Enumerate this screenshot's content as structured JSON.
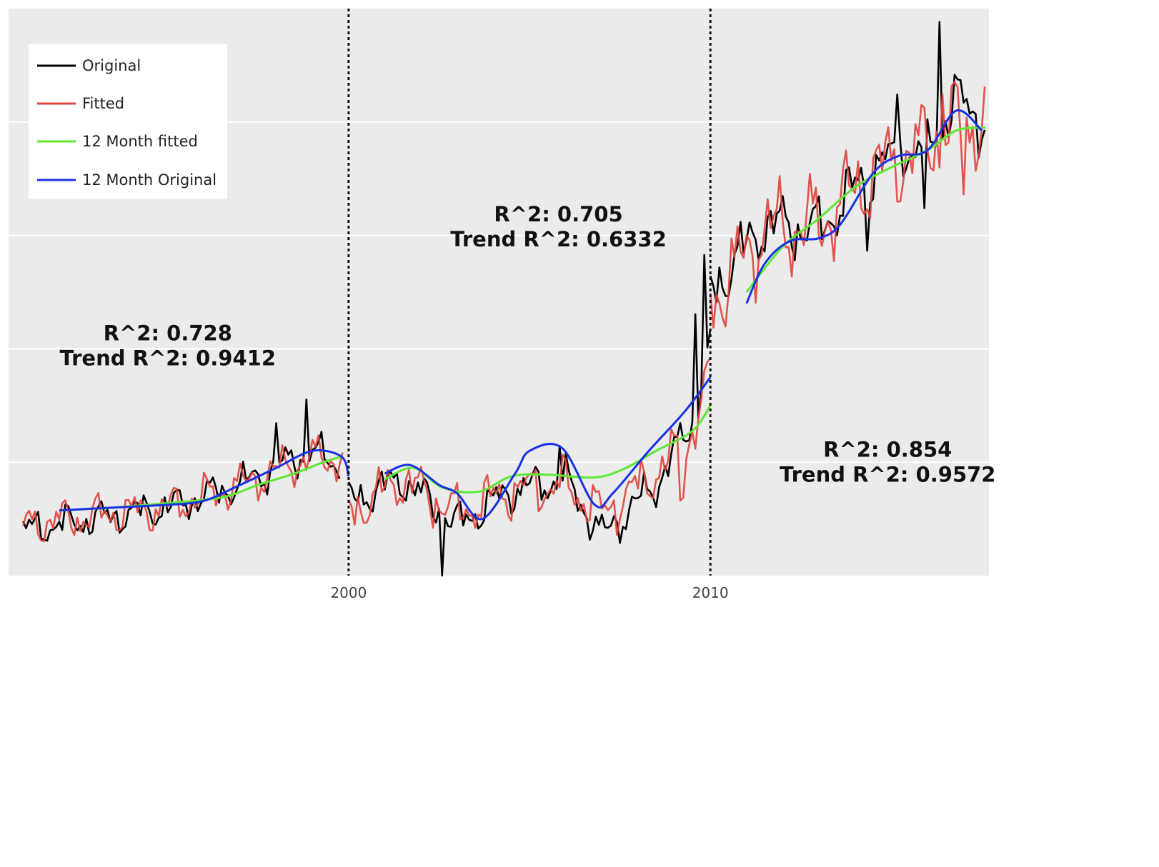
{
  "chart_data": {
    "type": "line",
    "title": "",
    "xlabel": "",
    "ylabel": "",
    "xlim": [
      1990.6,
      2017.7
    ],
    "ylim": [
      0,
      100
    ],
    "ytick_values": [
      20,
      40,
      60,
      80
    ],
    "yticklabels_shown": false,
    "xticks": [
      {
        "value": 2000,
        "label": "2000"
      },
      {
        "value": 2010,
        "label": "2010"
      }
    ],
    "grid": true,
    "background": "#ebebeb",
    "legend_position": "top-left",
    "breakpoints": [
      2000,
      2010
    ],
    "segments": [
      {
        "start": 1991.0,
        "end": 2000.0
      },
      {
        "start": 2000.0,
        "end": 2010.0
      },
      {
        "start": 2010.0,
        "end": 2017.6
      }
    ],
    "annotations": [
      {
        "lines": [
          "R^2: 0.728",
          "Trend R^2: 0.9412"
        ],
        "x": 1995.0,
        "y": 41.5
      },
      {
        "lines": [
          "R^2: 0.705",
          "Trend R^2: 0.6332"
        ],
        "x": 2005.8,
        "y": 62.5
      },
      {
        "lines": [
          "R^2: 0.854",
          "Trend R^2: 0.9572"
        ],
        "x": 2014.9,
        "y": 21.0
      }
    ],
    "series": [
      {
        "name": "Original",
        "color": "#000000",
        "kind": "original",
        "segments": [
          {
            "base": [
              [
                1991.0,
                8
              ],
              [
                1995.0,
                12
              ],
              [
                1997.0,
                16
              ],
              [
                1999.0,
                22
              ],
              [
                1999.8,
                19
              ]
            ],
            "amp": 3.5,
            "spikes": [
              [
                1998.0,
                8
              ],
              [
                1998.8,
                10
              ],
              [
                1999.9,
                -10
              ]
            ]
          },
          {
            "base": [
              [
                2000.0,
                13
              ],
              [
                2001.5,
                17
              ],
              [
                2003.0,
                9
              ],
              [
                2004.5,
                15
              ],
              [
                2006.0,
                17
              ],
              [
                2007.0,
                7
              ],
              [
                2008.5,
                16
              ],
              [
                2009.5,
                27
              ],
              [
                2010.0,
                40
              ]
            ],
            "amp": 4.0,
            "spikes": [
              [
                2002.6,
                -9
              ],
              [
                2005.8,
                7
              ],
              [
                2009.6,
                18
              ],
              [
                2009.8,
                22
              ]
            ]
          },
          {
            "base": [
              [
                2010.0,
                50
              ],
              [
                2011.5,
                62
              ],
              [
                2013.0,
                61
              ],
              [
                2014.5,
                72
              ],
              [
                2016.0,
                76
              ],
              [
                2016.8,
                84
              ],
              [
                2017.6,
                80
              ]
            ],
            "amp": 6.0,
            "spikes": [
              [
                2014.3,
                -12
              ],
              [
                2015.2,
                8
              ],
              [
                2015.9,
                -18
              ],
              [
                2016.3,
                19
              ]
            ]
          }
        ]
      },
      {
        "name": "Fitted",
        "color": "#e0443c",
        "kind": "fitted",
        "segments": [
          {
            "base": [
              [
                1991.0,
                9
              ],
              [
                1995.0,
                12
              ],
              [
                1997.0,
                16
              ],
              [
                1999.0,
                21
              ],
              [
                1999.9,
                20
              ]
            ],
            "amp": 4.0,
            "spikes": [
              [
                1999.85,
                3
              ]
            ]
          },
          {
            "base": [
              [
                2000.0,
                11
              ],
              [
                2001.5,
                17
              ],
              [
                2003.0,
                11
              ],
              [
                2004.5,
                15
              ],
              [
                2006.0,
                16
              ],
              [
                2007.0,
                11
              ],
              [
                2008.5,
                18
              ],
              [
                2009.5,
                25
              ],
              [
                2010.0,
                36
              ]
            ],
            "amp": 5.0,
            "spikes": [
              [
                2009.2,
                -8
              ]
            ]
          },
          {
            "base": [
              [
                2010.0,
                48
              ],
              [
                2011.5,
                61
              ],
              [
                2013.0,
                62
              ],
              [
                2014.5,
                71
              ],
              [
                2016.0,
                76
              ],
              [
                2016.8,
                80
              ],
              [
                2017.6,
                80
              ]
            ],
            "amp": 9.0,
            "spikes": [
              [
                2016.4,
                10
              ],
              [
                2017.0,
                -14
              ]
            ]
          }
        ]
      },
      {
        "name": "12 Month fitted",
        "color": "#5de832",
        "kind": "smooth",
        "segments": [
          {
            "points": [
              [
                1992.0,
                11.5
              ],
              [
                1993.5,
                12.0
              ],
              [
                1995.0,
                12.8
              ],
              [
                1996.5,
                13.8
              ],
              [
                1997.5,
                16.0
              ],
              [
                1998.5,
                18.0
              ],
              [
                1999.3,
                20.0
              ],
              [
                1999.8,
                21.0
              ]
            ]
          },
          {
            "points": [
              [
                2001.0,
                17.0
              ],
              [
                2001.8,
                19.0
              ],
              [
                2002.6,
                15.5
              ],
              [
                2003.6,
                14.8
              ],
              [
                2004.5,
                17.5
              ],
              [
                2005.5,
                17.8
              ],
              [
                2006.8,
                17.3
              ],
              [
                2007.6,
                18.8
              ],
              [
                2008.5,
                22.0
              ],
              [
                2009.5,
                25.5
              ],
              [
                2010.0,
                30.0
              ]
            ]
          },
          {
            "points": [
              [
                2011.0,
                50.0
              ],
              [
                2012.0,
                58.0
              ],
              [
                2013.0,
                63.0
              ],
              [
                2014.0,
                68.5
              ],
              [
                2015.0,
                72.0
              ],
              [
                2016.0,
                75.0
              ],
              [
                2016.8,
                78.5
              ],
              [
                2017.6,
                79.0
              ]
            ]
          }
        ]
      },
      {
        "name": "12 Month Original",
        "color": "#1732e6",
        "kind": "smooth",
        "segments": [
          {
            "points": [
              [
                1992.0,
                11.5
              ],
              [
                1993.5,
                12.0
              ],
              [
                1995.0,
                12.5
              ],
              [
                1996.0,
                13.2
              ],
              [
                1997.0,
                16.0
              ],
              [
                1998.0,
                19.0
              ],
              [
                1999.0,
                22.0
              ],
              [
                1999.8,
                21.0
              ],
              [
                2000.0,
                17.5
              ]
            ]
          },
          {
            "points": [
              [
                2001.0,
                18.0
              ],
              [
                2001.7,
                19.5
              ],
              [
                2002.5,
                16.0
              ],
              [
                2003.0,
                14.5
              ],
              [
                2003.7,
                10.0
              ],
              [
                2004.6,
                18.0
              ],
              [
                2005.0,
                22.0
              ],
              [
                2005.9,
                22.5
              ],
              [
                2006.8,
                12.5
              ],
              [
                2007.3,
                14.5
              ],
              [
                2008.3,
                22.0
              ],
              [
                2009.3,
                29.0
              ],
              [
                2010.0,
                35.0
              ]
            ]
          },
          {
            "points": [
              [
                2011.0,
                48.0
              ],
              [
                2011.5,
                55.0
              ],
              [
                2012.2,
                59.0
              ],
              [
                2013.0,
                59.5
              ],
              [
                2013.6,
                62.0
              ],
              [
                2014.5,
                71.0
              ],
              [
                2015.2,
                74.0
              ],
              [
                2016.0,
                75.0
              ],
              [
                2016.8,
                82.0
              ],
              [
                2017.5,
                78.5
              ]
            ]
          }
        ]
      }
    ]
  },
  "legend": {
    "items": [
      {
        "label": "Original",
        "color": "#000000"
      },
      {
        "label": "Fitted",
        "color": "#e0443c"
      },
      {
        "label": "12 Month fitted",
        "color": "#5de832"
      },
      {
        "label": "12 Month Original",
        "color": "#1732e6"
      }
    ]
  }
}
